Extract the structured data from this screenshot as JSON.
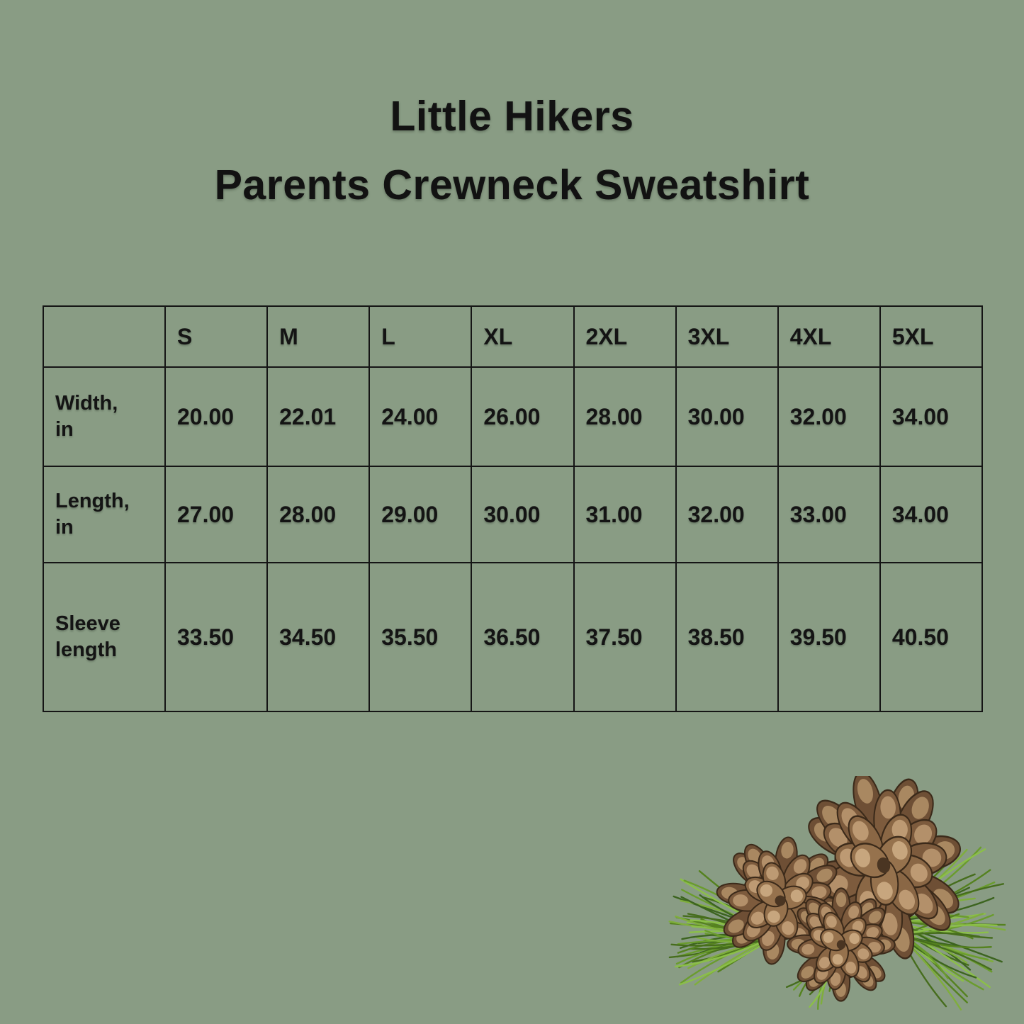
{
  "title": {
    "line1": "Little Hikers",
    "line2": "Parents Crewneck Sweatshirt"
  },
  "chart_data": {
    "type": "table",
    "title": "Little Hikers Parents Crewneck Sweatshirt",
    "columns": [
      "",
      "S",
      "M",
      "L",
      "XL",
      "2XL",
      "3XL",
      "4XL",
      "5XL"
    ],
    "rows": [
      {
        "label": "Width, in",
        "values": [
          "20.00",
          "22.01",
          "24.00",
          "26.00",
          "28.00",
          "30.00",
          "32.00",
          "34.00"
        ]
      },
      {
        "label": "Length, in",
        "values": [
          "27.00",
          "28.00",
          "29.00",
          "30.00",
          "31.00",
          "32.00",
          "33.00",
          "34.00"
        ]
      },
      {
        "label": "Sleeve length",
        "values": [
          "33.50",
          "34.50",
          "35.50",
          "36.50",
          "37.50",
          "38.50",
          "39.50",
          "40.50"
        ]
      }
    ]
  },
  "decoration": {
    "name": "pinecones-with-pine-needles"
  },
  "colors": {
    "background": "#899C84",
    "text": "#141414",
    "table_border": "#151515",
    "pinecone_brown": "#7d5b3d",
    "needle_green": "#5f9334"
  }
}
